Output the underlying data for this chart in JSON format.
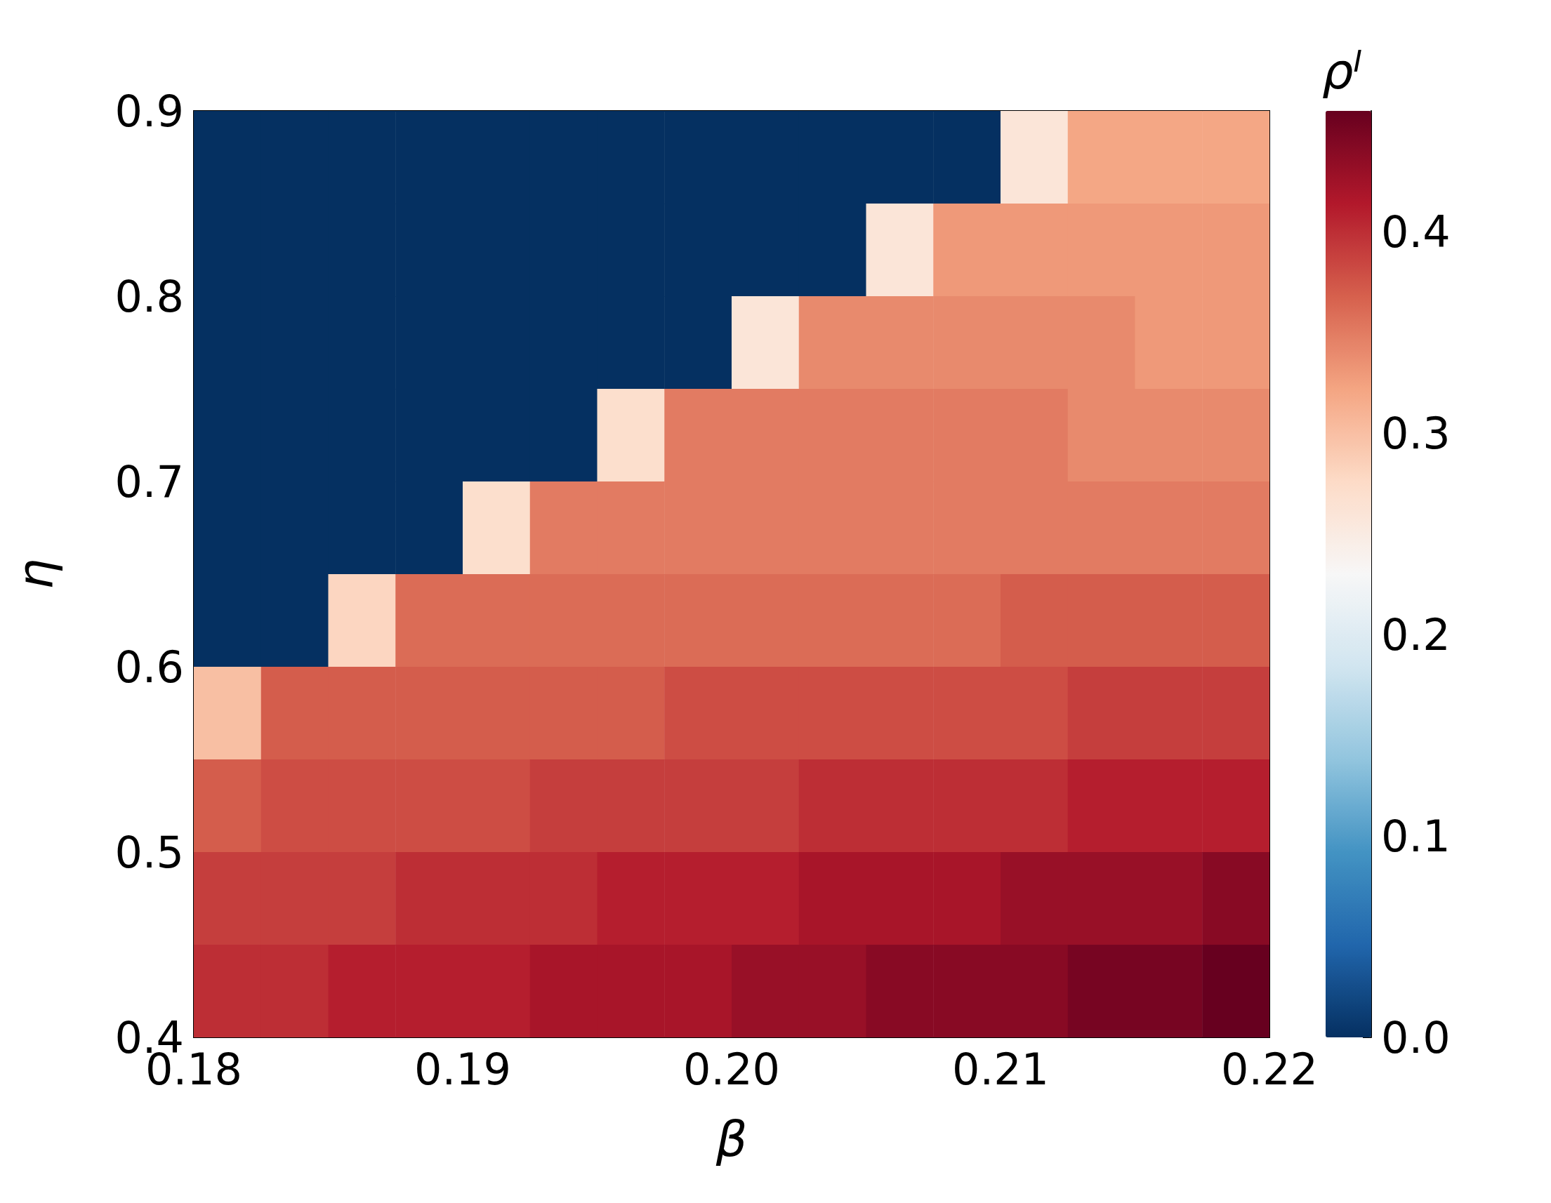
{
  "chart_data": {
    "type": "heatmap",
    "xlabel": "β",
    "ylabel": "η",
    "clabel": "ρ$^{I}$",
    "x": [
      0.18125,
      0.18375,
      0.18625,
      0.18875,
      0.19125,
      0.19375,
      0.19625,
      0.19875,
      0.20125,
      0.20375,
      0.20625,
      0.20875,
      0.21125,
      0.21375,
      0.21625,
      0.21875
    ],
    "y": [
      0.875,
      0.825,
      0.775,
      0.725,
      0.675,
      0.625,
      0.575,
      0.525,
      0.475,
      0.425
    ],
    "xlim": [
      0.18,
      0.22
    ],
    "xticks": [
      0.18,
      0.19,
      {
        "value": 0.2,
        "label": "0.20"
      },
      0.21,
      0.22
    ],
    "ylim": [
      0.4,
      0.9
    ],
    "yticks": [
      0.4,
      0.5,
      0.6,
      0.7,
      0.8,
      0.9
    ],
    "clim": [
      0,
      0.46
    ],
    "cticks": [
      {
        "value": 0,
        "label": "0.0"
      },
      0.1,
      0.2,
      0.3,
      0.4
    ],
    "cells": [
      [
        0,
        0,
        0,
        0,
        0,
        0,
        0,
        0,
        0,
        0,
        0,
        0,
        0.26,
        0.32,
        0.32,
        0.32
      ],
      [
        0,
        0,
        0,
        0,
        0,
        0,
        0,
        0,
        0,
        0,
        0.26,
        0.33,
        0.33,
        0.33,
        0.33,
        0.33
      ],
      [
        0,
        0,
        0,
        0,
        0,
        0,
        0,
        0,
        0.26,
        0.34,
        0.34,
        0.34,
        0.34,
        0.34,
        0.33,
        0.33
      ],
      [
        0,
        0,
        0,
        0,
        0,
        0,
        0.27,
        0.35,
        0.35,
        0.35,
        0.35,
        0.35,
        0.35,
        0.34,
        0.34,
        0.34
      ],
      [
        0,
        0,
        0,
        0,
        0.27,
        0.35,
        0.35,
        0.35,
        0.35,
        0.35,
        0.35,
        0.35,
        0.35,
        0.35,
        0.35,
        0.35
      ],
      [
        0,
        0,
        0.28,
        0.36,
        0.36,
        0.36,
        0.36,
        0.36,
        0.36,
        0.36,
        0.36,
        0.36,
        0.37,
        0.37,
        0.37,
        0.37
      ],
      [
        0.3,
        0.37,
        0.37,
        0.37,
        0.37,
        0.37,
        0.37,
        0.38,
        0.38,
        0.38,
        0.38,
        0.38,
        0.38,
        0.39,
        0.39,
        0.39
      ],
      [
        0.37,
        0.38,
        0.38,
        0.38,
        0.38,
        0.39,
        0.39,
        0.39,
        0.39,
        0.4,
        0.4,
        0.4,
        0.4,
        0.41,
        0.41,
        0.41
      ],
      [
        0.39,
        0.39,
        0.39,
        0.4,
        0.4,
        0.4,
        0.41,
        0.41,
        0.41,
        0.42,
        0.42,
        0.42,
        0.43,
        0.43,
        0.43,
        0.44
      ],
      [
        0.4,
        0.4,
        0.41,
        0.41,
        0.41,
        0.42,
        0.42,
        0.42,
        0.43,
        0.43,
        0.44,
        0.44,
        0.44,
        0.45,
        0.45,
        0.46
      ]
    ]
  }
}
